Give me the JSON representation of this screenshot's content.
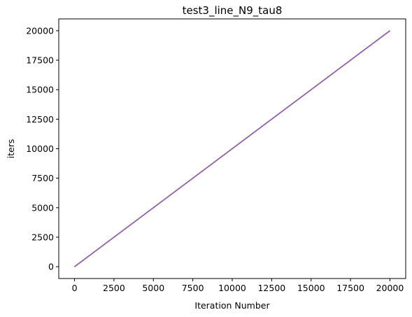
{
  "chart_data": {
    "type": "line",
    "title": "test3_line_N9_tau8",
    "xlabel": "Iteration Number",
    "ylabel": "iters",
    "xlim": [
      -1000,
      21000
    ],
    "ylim": [
      -1000,
      21000
    ],
    "xticks": [
      0,
      2500,
      5000,
      7500,
      10000,
      12500,
      15000,
      17500,
      20000
    ],
    "yticks": [
      0,
      2500,
      5000,
      7500,
      10000,
      12500,
      15000,
      17500,
      20000
    ],
    "xtick_labels": [
      "0",
      "2500",
      "5000",
      "7500",
      "10000",
      "12500",
      "15000",
      "17500",
      "20000"
    ],
    "ytick_labels": [
      "0",
      "2500",
      "5000",
      "7500",
      "10000",
      "12500",
      "15000",
      "17500",
      "20000"
    ],
    "grid": false,
    "series": [
      {
        "color": "#1f77b4",
        "x": [
          0,
          20000
        ],
        "y": [
          0,
          20000
        ]
      },
      {
        "color": "#ff7f0e",
        "x": [
          0,
          20000
        ],
        "y": [
          0,
          20000
        ]
      },
      {
        "color": "#2ca02c",
        "x": [
          0,
          20000
        ],
        "y": [
          0,
          20000
        ]
      },
      {
        "color": "#d62728",
        "x": [
          0,
          20000
        ],
        "y": [
          0,
          20000
        ]
      },
      {
        "color": "#9467bd",
        "x": [
          0,
          20000
        ],
        "y": [
          0,
          20000
        ]
      }
    ]
  }
}
